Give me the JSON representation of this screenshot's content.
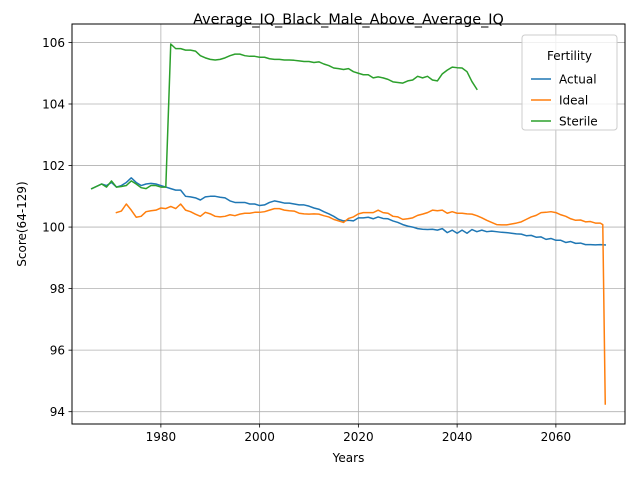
{
  "chart_data": {
    "type": "line",
    "title": "Average_IQ_Black_Male_Above_Average_IQ",
    "xlabel": "Years",
    "ylabel": "Score(64-129)",
    "xlim": [
      1962,
      2074
    ],
    "ylim": [
      93.6,
      106.6
    ],
    "x_ticks": [
      1980,
      2000,
      2020,
      2040,
      2060
    ],
    "y_ticks": [
      94,
      96,
      98,
      100,
      102,
      104,
      106
    ],
    "grid": true,
    "legend": {
      "title": "Fertility",
      "position": "top-right"
    },
    "series": [
      {
        "name": "Actual",
        "color": "#1f77b4",
        "points": [
          [
            1966,
            101.25
          ],
          [
            1968,
            101.4
          ],
          [
            1969,
            101.35
          ],
          [
            1970,
            101.45
          ],
          [
            1971,
            101.3
          ],
          [
            1972,
            101.35
          ],
          [
            1973,
            101.45
          ],
          [
            1974,
            101.6
          ],
          [
            1975,
            101.45
          ],
          [
            1976,
            101.35
          ],
          [
            1977,
            101.4
          ],
          [
            1978,
            101.42
          ],
          [
            1979,
            101.4
          ],
          [
            1980,
            101.35
          ],
          [
            1981,
            101.3
          ],
          [
            1982,
            101.25
          ],
          [
            1983,
            101.2
          ],
          [
            1984,
            101.2
          ],
          [
            1985,
            101.0
          ],
          [
            1986,
            100.98
          ],
          [
            1987,
            100.95
          ],
          [
            1988,
            100.88
          ],
          [
            1989,
            100.98
          ],
          [
            1990,
            101.0
          ],
          [
            1991,
            101.0
          ],
          [
            1992,
            100.97
          ],
          [
            1993,
            100.95
          ],
          [
            1994,
            100.85
          ],
          [
            1995,
            100.8
          ],
          [
            1996,
            100.8
          ],
          [
            1997,
            100.8
          ],
          [
            1998,
            100.75
          ],
          [
            1999,
            100.75
          ],
          [
            2000,
            100.7
          ],
          [
            2001,
            100.72
          ],
          [
            2002,
            100.8
          ],
          [
            2003,
            100.85
          ],
          [
            2004,
            100.82
          ],
          [
            2005,
            100.78
          ],
          [
            2006,
            100.78
          ],
          [
            2007,
            100.75
          ],
          [
            2008,
            100.72
          ],
          [
            2009,
            100.72
          ],
          [
            2010,
            100.68
          ],
          [
            2011,
            100.62
          ],
          [
            2012,
            100.58
          ],
          [
            2013,
            100.5
          ],
          [
            2014,
            100.43
          ],
          [
            2015,
            100.35
          ],
          [
            2016,
            100.25
          ],
          [
            2017,
            100.2
          ],
          [
            2018,
            100.22
          ],
          [
            2019,
            100.2
          ],
          [
            2020,
            100.3
          ],
          [
            2021,
            100.3
          ],
          [
            2022,
            100.32
          ],
          [
            2023,
            100.27
          ],
          [
            2024,
            100.33
          ],
          [
            2025,
            100.28
          ],
          [
            2026,
            100.27
          ],
          [
            2027,
            100.2
          ],
          [
            2028,
            100.15
          ],
          [
            2029,
            100.08
          ],
          [
            2030,
            100.03
          ],
          [
            2031,
            100.0
          ],
          [
            2032,
            99.95
          ],
          [
            2033,
            99.93
          ],
          [
            2034,
            99.92
          ],
          [
            2035,
            99.93
          ],
          [
            2036,
            99.9
          ],
          [
            2037,
            99.95
          ],
          [
            2038,
            99.82
          ],
          [
            2039,
            99.9
          ],
          [
            2040,
            99.8
          ],
          [
            2041,
            99.9
          ],
          [
            2042,
            99.8
          ],
          [
            2043,
            99.92
          ],
          [
            2044,
            99.85
          ],
          [
            2045,
            99.9
          ],
          [
            2046,
            99.85
          ],
          [
            2047,
            99.87
          ],
          [
            2048,
            99.85
          ],
          [
            2049,
            99.83
          ],
          [
            2050,
            99.82
          ],
          [
            2051,
            99.8
          ],
          [
            2052,
            99.78
          ],
          [
            2053,
            99.77
          ],
          [
            2054,
            99.72
          ],
          [
            2055,
            99.73
          ],
          [
            2056,
            99.67
          ],
          [
            2057,
            99.68
          ],
          [
            2058,
            99.6
          ],
          [
            2059,
            99.63
          ],
          [
            2060,
            99.57
          ],
          [
            2061,
            99.57
          ],
          [
            2062,
            99.5
          ],
          [
            2063,
            99.53
          ],
          [
            2064,
            99.47
          ],
          [
            2065,
            99.48
          ],
          [
            2066,
            99.43
          ],
          [
            2067,
            99.43
          ],
          [
            2068,
            99.42
          ],
          [
            2069,
            99.43
          ],
          [
            2070,
            99.42
          ]
        ]
      },
      {
        "name": "Ideal",
        "color": "#ff7f0e",
        "points": [
          [
            1971,
            100.47
          ],
          [
            1972,
            100.52
          ],
          [
            1973,
            100.75
          ],
          [
            1974,
            100.55
          ],
          [
            1975,
            100.32
          ],
          [
            1976,
            100.35
          ],
          [
            1977,
            100.5
          ],
          [
            1978,
            100.53
          ],
          [
            1979,
            100.55
          ],
          [
            1980,
            100.62
          ],
          [
            1981,
            100.6
          ],
          [
            1982,
            100.67
          ],
          [
            1983,
            100.6
          ],
          [
            1984,
            100.75
          ],
          [
            1985,
            100.55
          ],
          [
            1986,
            100.5
          ],
          [
            1987,
            100.42
          ],
          [
            1988,
            100.35
          ],
          [
            1989,
            100.48
          ],
          [
            1990,
            100.43
          ],
          [
            1991,
            100.35
          ],
          [
            1992,
            100.33
          ],
          [
            1993,
            100.35
          ],
          [
            1994,
            100.4
          ],
          [
            1995,
            100.37
          ],
          [
            1996,
            100.42
          ],
          [
            1997,
            100.45
          ],
          [
            1998,
            100.45
          ],
          [
            1999,
            100.48
          ],
          [
            2000,
            100.48
          ],
          [
            2001,
            100.5
          ],
          [
            2002,
            100.55
          ],
          [
            2003,
            100.6
          ],
          [
            2004,
            100.6
          ],
          [
            2005,
            100.55
          ],
          [
            2006,
            100.53
          ],
          [
            2007,
            100.52
          ],
          [
            2008,
            100.45
          ],
          [
            2009,
            100.43
          ],
          [
            2010,
            100.42
          ],
          [
            2011,
            100.43
          ],
          [
            2012,
            100.42
          ],
          [
            2013,
            100.37
          ],
          [
            2014,
            100.33
          ],
          [
            2015,
            100.25
          ],
          [
            2016,
            100.2
          ],
          [
            2017,
            100.15
          ],
          [
            2018,
            100.28
          ],
          [
            2019,
            100.33
          ],
          [
            2020,
            100.43
          ],
          [
            2021,
            100.47
          ],
          [
            2022,
            100.47
          ],
          [
            2023,
            100.47
          ],
          [
            2024,
            100.55
          ],
          [
            2025,
            100.47
          ],
          [
            2026,
            100.45
          ],
          [
            2027,
            100.35
          ],
          [
            2028,
            100.33
          ],
          [
            2029,
            100.25
          ],
          [
            2030,
            100.27
          ],
          [
            2031,
            100.3
          ],
          [
            2032,
            100.38
          ],
          [
            2033,
            100.42
          ],
          [
            2034,
            100.47
          ],
          [
            2035,
            100.55
          ],
          [
            2036,
            100.53
          ],
          [
            2037,
            100.55
          ],
          [
            2038,
            100.45
          ],
          [
            2039,
            100.5
          ],
          [
            2040,
            100.45
          ],
          [
            2041,
            100.45
          ],
          [
            2042,
            100.43
          ],
          [
            2043,
            100.42
          ],
          [
            2044,
            100.37
          ],
          [
            2045,
            100.3
          ],
          [
            2046,
            100.22
          ],
          [
            2047,
            100.15
          ],
          [
            2048,
            100.08
          ],
          [
            2049,
            100.07
          ],
          [
            2050,
            100.07
          ],
          [
            2051,
            100.1
          ],
          [
            2052,
            100.13
          ],
          [
            2053,
            100.17
          ],
          [
            2054,
            100.25
          ],
          [
            2055,
            100.33
          ],
          [
            2056,
            100.38
          ],
          [
            2057,
            100.47
          ],
          [
            2058,
            100.48
          ],
          [
            2059,
            100.5
          ],
          [
            2060,
            100.47
          ],
          [
            2061,
            100.4
          ],
          [
            2062,
            100.35
          ],
          [
            2063,
            100.27
          ],
          [
            2064,
            100.22
          ],
          [
            2065,
            100.23
          ],
          [
            2066,
            100.17
          ],
          [
            2067,
            100.18
          ],
          [
            2068,
            100.13
          ],
          [
            2069,
            100.13
          ],
          [
            2069.5,
            100.08
          ],
          [
            2070,
            94.25
          ]
        ]
      },
      {
        "name": "Sterile",
        "color": "#2ca02c",
        "points": [
          [
            1966,
            101.25
          ],
          [
            1968,
            101.4
          ],
          [
            1969,
            101.3
          ],
          [
            1970,
            101.5
          ],
          [
            1971,
            101.3
          ],
          [
            1972,
            101.32
          ],
          [
            1973,
            101.35
          ],
          [
            1974,
            101.5
          ],
          [
            1975,
            101.4
          ],
          [
            1976,
            101.28
          ],
          [
            1977,
            101.25
          ],
          [
            1978,
            101.35
          ],
          [
            1979,
            101.35
          ],
          [
            1980,
            101.3
          ],
          [
            1981,
            101.3
          ],
          [
            1982,
            105.95
          ],
          [
            1983,
            105.8
          ],
          [
            1984,
            105.8
          ],
          [
            1985,
            105.75
          ],
          [
            1986,
            105.75
          ],
          [
            1987,
            105.72
          ],
          [
            1988,
            105.57
          ],
          [
            1989,
            105.5
          ],
          [
            1990,
            105.45
          ],
          [
            1991,
            105.43
          ],
          [
            1992,
            105.45
          ],
          [
            1993,
            105.5
          ],
          [
            1994,
            105.57
          ],
          [
            1995,
            105.62
          ],
          [
            1996,
            105.62
          ],
          [
            1997,
            105.57
          ],
          [
            1998,
            105.55
          ],
          [
            1999,
            105.55
          ],
          [
            2000,
            105.52
          ],
          [
            2001,
            105.52
          ],
          [
            2002,
            105.47
          ],
          [
            2003,
            105.45
          ],
          [
            2004,
            105.45
          ],
          [
            2005,
            105.43
          ],
          [
            2006,
            105.43
          ],
          [
            2007,
            105.42
          ],
          [
            2008,
            105.4
          ],
          [
            2009,
            105.38
          ],
          [
            2010,
            105.38
          ],
          [
            2011,
            105.35
          ],
          [
            2012,
            105.37
          ],
          [
            2013,
            105.3
          ],
          [
            2014,
            105.25
          ],
          [
            2015,
            105.17
          ],
          [
            2016,
            105.15
          ],
          [
            2017,
            105.12
          ],
          [
            2018,
            105.15
          ],
          [
            2019,
            105.05
          ],
          [
            2020,
            105.0
          ],
          [
            2021,
            104.95
          ],
          [
            2022,
            104.95
          ],
          [
            2023,
            104.85
          ],
          [
            2024,
            104.88
          ],
          [
            2025,
            104.85
          ],
          [
            2026,
            104.8
          ],
          [
            2027,
            104.72
          ],
          [
            2028,
            104.7
          ],
          [
            2029,
            104.68
          ],
          [
            2030,
            104.75
          ],
          [
            2031,
            104.78
          ],
          [
            2032,
            104.9
          ],
          [
            2033,
            104.85
          ],
          [
            2034,
            104.9
          ],
          [
            2035,
            104.78
          ],
          [
            2036,
            104.75
          ],
          [
            2037,
            104.98
          ],
          [
            2038,
            105.1
          ],
          [
            2039,
            105.2
          ],
          [
            2040,
            105.18
          ],
          [
            2041,
            105.17
          ],
          [
            2042,
            105.05
          ],
          [
            2043,
            104.73
          ],
          [
            2044,
            104.48
          ]
        ]
      }
    ]
  }
}
